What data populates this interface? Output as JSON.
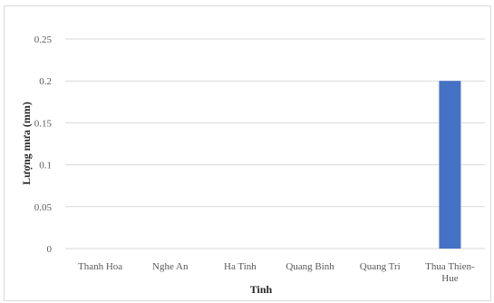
{
  "chart_data": {
    "type": "bar",
    "title": "",
    "xlabel": "Tinh",
    "ylabel": "Lượng mưa (mm)",
    "categories": [
      "Thanh Hoa",
      "Nghe An",
      "Ha Tinh",
      "Quang Binh",
      "Quang Tri",
      "Thua Thien-Hue"
    ],
    "values": [
      0,
      0,
      0,
      0,
      0,
      0.2
    ],
    "ylim": [
      0,
      0.25
    ],
    "yticks": [
      "0",
      "0.05",
      "0.1",
      "0.15",
      "0.2",
      "0.25"
    ],
    "grid": true,
    "legend": "none",
    "bar_color": "#4472C4"
  }
}
